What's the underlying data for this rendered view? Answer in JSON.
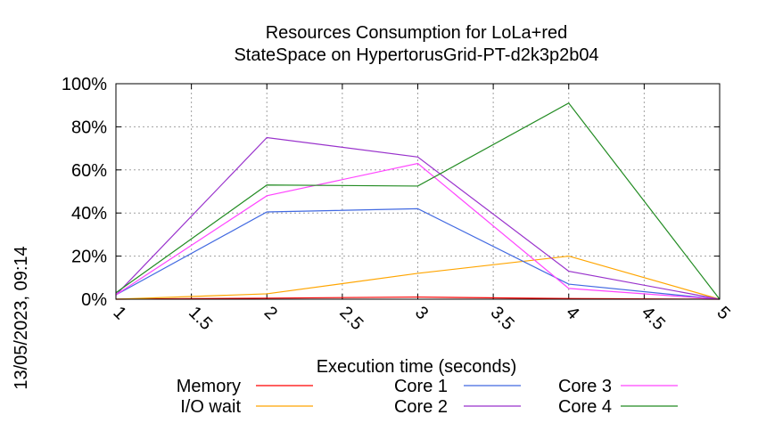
{
  "chart_data": {
    "type": "line",
    "title": [
      "Resources Consumption for LoLa+red",
      "StateSpace on HypertorusGrid-PT-d2k3p2b04"
    ],
    "xlabel": "Execution time (seconds)",
    "ylabel": "",
    "timestamp": "13/05/2023, 09:14",
    "xlim": [
      1,
      5
    ],
    "ylim": [
      0,
      100
    ],
    "x_ticks": [
      "1",
      "1.5",
      "2",
      "2.5",
      "3",
      "3.5",
      "4",
      "4.5",
      "5"
    ],
    "y_ticks": [
      "0%",
      "20%",
      "40%",
      "60%",
      "80%",
      "100%"
    ],
    "grid": true,
    "legend_placement": "bottom",
    "x": [
      1,
      2,
      3,
      4,
      5
    ],
    "series": [
      {
        "name": "Memory",
        "color": "#ff0000",
        "values": [
          0,
          0.5,
          1,
          0.3,
          0
        ]
      },
      {
        "name": "I/O wait",
        "color": "#ffa500",
        "values": [
          0,
          2.5,
          12,
          20,
          0
        ]
      },
      {
        "name": "Core 1",
        "color": "#4169e1",
        "values": [
          2,
          40.5,
          42,
          7,
          0
        ]
      },
      {
        "name": "Core 2",
        "color": "#9932cc",
        "values": [
          2,
          75,
          66,
          13,
          0
        ]
      },
      {
        "name": "Core 3",
        "color": "#ff44ff",
        "values": [
          2,
          48,
          63,
          5,
          0
        ]
      },
      {
        "name": "Core 4",
        "color": "#228b22",
        "values": [
          3,
          53,
          52.5,
          91,
          0
        ]
      }
    ]
  }
}
